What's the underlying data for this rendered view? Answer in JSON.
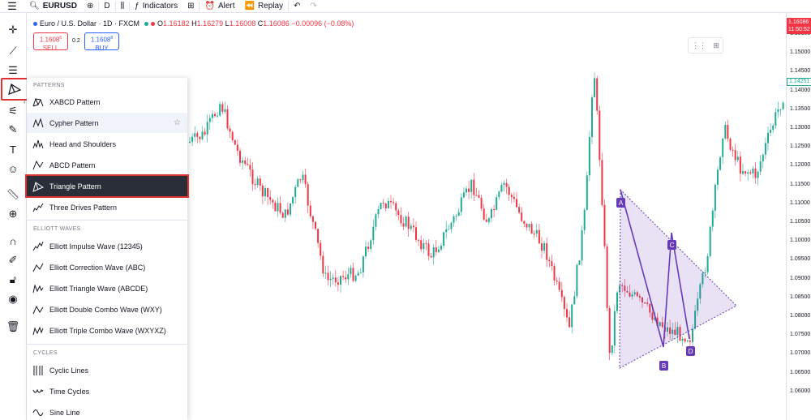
{
  "topbar": {
    "symbol": "EURUSD",
    "interval": "D",
    "indicators_label": "Indicators",
    "alert_label": "Alert",
    "replay_label": "Replay"
  },
  "legend": {
    "title": "Euro / U.S. Dollar · 1D · FXCM",
    "open_label": "O",
    "open": "1.16182",
    "high_label": "H",
    "high": "1.16279",
    "low_label": "L",
    "low": "1.16008",
    "close_label": "C",
    "close": "1.16086",
    "change": "−0.00096 (−0.08%)"
  },
  "trade": {
    "sell_price": "1.1608",
    "sell_price_sup": "6",
    "sell_label": "SELL",
    "spread": "0.2",
    "buy_price": "1.1608",
    "buy_price_sup": "8",
    "buy_label": "BUY"
  },
  "flyout": {
    "patterns_title": "PATTERNS",
    "patterns": [
      {
        "label": "XABCD Pattern"
      },
      {
        "label": "Cypher Pattern"
      },
      {
        "label": "Head and Shoulders"
      },
      {
        "label": "ABCD Pattern"
      },
      {
        "label": "Triangle Pattern"
      },
      {
        "label": "Three Drives Pattern"
      }
    ],
    "elliott_title": "ELLIOTT WAVES",
    "elliott": [
      {
        "label": "Elliott Impulse Wave (12345)"
      },
      {
        "label": "Elliott Correction Wave (ABC)"
      },
      {
        "label": "Elliott Triangle Wave (ABCDE)"
      },
      {
        "label": "Elliott Double Combo Wave (WXY)"
      },
      {
        "label": "Elliott Triple Combo Wave (WXYXZ)"
      }
    ],
    "cycles_title": "CYCLES",
    "cycles": [
      {
        "label": "Cyclic Lines"
      },
      {
        "label": "Time Cycles"
      },
      {
        "label": "Sine Line"
      }
    ]
  },
  "price_axis": {
    "current_price": "1.16086",
    "countdown": "11:50:52",
    "marker_price": "1.14251",
    "ticks": [
      "1.15500",
      "1.15000",
      "1.14500",
      "1.14000",
      "1.13500",
      "1.13000",
      "1.12500",
      "1.12000",
      "1.11500",
      "1.11000",
      "1.10500",
      "1.10000",
      "1.09500",
      "1.09000",
      "1.08500",
      "1.08000",
      "1.07500",
      "1.07000",
      "1.06500",
      "1.06000"
    ]
  },
  "triangle": {
    "point_labels": [
      "A",
      "B",
      "C",
      "D"
    ]
  },
  "colors": {
    "up": "#22ab94",
    "down": "#f23645",
    "pattern": "#673ab7",
    "highlight": "#e03131"
  }
}
